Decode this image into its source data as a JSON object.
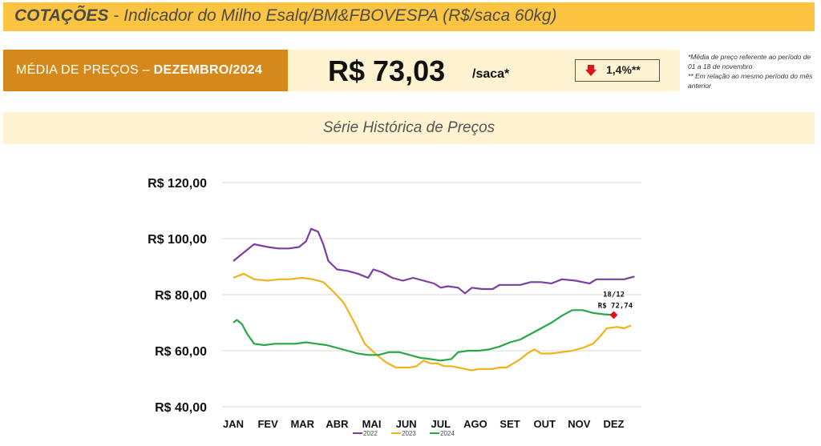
{
  "header": {
    "title_bold": "COTAÇÕES",
    "title_rest": " - Indicador do Milho Esalq/BM&FBOVESPA (R$/saca 60kg)"
  },
  "average": {
    "label_prefix": "MÉDIA DE PREÇOS – ",
    "label_period": "DEZEMBRO/2024",
    "price": "R$ 73,03",
    "unit": "/saca*",
    "change": "1,4%**",
    "change_direction": "down",
    "arrow_color": "#e0121b"
  },
  "notes": {
    "note1": "*Média de preço referente ao período de 01 a 18 de novembro",
    "note2": "** Em relação ao mesmo período do mês anterior"
  },
  "chart_title": "Série Histórica de Preços",
  "chart_data": {
    "type": "line",
    "x_ticks": [
      "JAN",
      "FEV",
      "MAR",
      "ABR",
      "MAI",
      "JUN",
      "JUL",
      "AGO",
      "SET",
      "OUT",
      "NOV",
      "DEZ"
    ],
    "y_ticks": [
      "R$ 120,00",
      "R$ 100,00",
      "R$ 80,00",
      "R$ 60,00",
      "R$ 40,00"
    ],
    "ylim": [
      40,
      120
    ],
    "xlim": [
      0,
      11.8
    ],
    "annotation": {
      "date": "18/12",
      "value": "R$ 72,74",
      "x": 11.0,
      "y": 72.74,
      "color": "#e0121b"
    },
    "series": [
      {
        "name": "2022",
        "color": "#7a3fa0",
        "points": [
          [
            0,
            92
          ],
          [
            0.3,
            95
          ],
          [
            0.6,
            98
          ],
          [
            1,
            97
          ],
          [
            1.3,
            96.5
          ],
          [
            1.6,
            96.5
          ],
          [
            1.9,
            97
          ],
          [
            2.1,
            99
          ],
          [
            2.25,
            103.5
          ],
          [
            2.45,
            102.5
          ],
          [
            2.6,
            98
          ],
          [
            2.75,
            92
          ],
          [
            3,
            89
          ],
          [
            3.3,
            88.5
          ],
          [
            3.6,
            87.5
          ],
          [
            3.9,
            86
          ],
          [
            4.05,
            89
          ],
          [
            4.3,
            88
          ],
          [
            4.6,
            86
          ],
          [
            4.9,
            85
          ],
          [
            5.2,
            86
          ],
          [
            5.5,
            85
          ],
          [
            5.8,
            84
          ],
          [
            6,
            82.5
          ],
          [
            6.2,
            83
          ],
          [
            6.5,
            82.5
          ],
          [
            6.7,
            80.5
          ],
          [
            6.9,
            82.5
          ],
          [
            7.2,
            82
          ],
          [
            7.5,
            82
          ],
          [
            7.7,
            83.5
          ],
          [
            8,
            83.5
          ],
          [
            8.3,
            83.5
          ],
          [
            8.6,
            84.5
          ],
          [
            8.9,
            84.5
          ],
          [
            9.2,
            84
          ],
          [
            9.5,
            85.5
          ],
          [
            9.9,
            85
          ],
          [
            10.1,
            84.5
          ],
          [
            10.3,
            84
          ],
          [
            10.5,
            85.5
          ],
          [
            10.9,
            85.5
          ],
          [
            11.3,
            85.5
          ],
          [
            11.6,
            86.5
          ]
        ]
      },
      {
        "name": "2023",
        "color": "#f2b21c",
        "points": [
          [
            0,
            86
          ],
          [
            0.3,
            87.5
          ],
          [
            0.6,
            85.5
          ],
          [
            1,
            85
          ],
          [
            1.3,
            85.5
          ],
          [
            1.6,
            85.5
          ],
          [
            2,
            86
          ],
          [
            2.3,
            85.5
          ],
          [
            2.6,
            84.5
          ],
          [
            2.9,
            81
          ],
          [
            3.2,
            77
          ],
          [
            3.5,
            70
          ],
          [
            3.8,
            62.5
          ],
          [
            4.1,
            59
          ],
          [
            4.4,
            56
          ],
          [
            4.7,
            54
          ],
          [
            4.9,
            54
          ],
          [
            5.1,
            54
          ],
          [
            5.3,
            54.5
          ],
          [
            5.5,
            56.5
          ],
          [
            5.7,
            55.5
          ],
          [
            5.9,
            55.5
          ],
          [
            6.1,
            54.5
          ],
          [
            6.3,
            54.5
          ],
          [
            6.5,
            54
          ],
          [
            6.7,
            53.5
          ],
          [
            6.9,
            53
          ],
          [
            7.1,
            53.5
          ],
          [
            7.3,
            53.5
          ],
          [
            7.5,
            53.5
          ],
          [
            7.7,
            54
          ],
          [
            7.9,
            54
          ],
          [
            8.1,
            55.5
          ],
          [
            8.3,
            57
          ],
          [
            8.5,
            59
          ],
          [
            8.7,
            60.5
          ],
          [
            8.9,
            59
          ],
          [
            9.2,
            59
          ],
          [
            9.5,
            59.5
          ],
          [
            9.8,
            60
          ],
          [
            10.1,
            61
          ],
          [
            10.4,
            62.5
          ],
          [
            10.6,
            65
          ],
          [
            10.8,
            68
          ],
          [
            11.1,
            68.5
          ],
          [
            11.3,
            68
          ],
          [
            11.5,
            69
          ]
        ]
      },
      {
        "name": "2024",
        "color": "#2aa64a",
        "points": [
          [
            0,
            70
          ],
          [
            0.1,
            71
          ],
          [
            0.25,
            69.5
          ],
          [
            0.4,
            66
          ],
          [
            0.6,
            62.5
          ],
          [
            0.9,
            62
          ],
          [
            1.2,
            62.5
          ],
          [
            1.5,
            62.5
          ],
          [
            1.8,
            62.5
          ],
          [
            2.1,
            63
          ],
          [
            2.4,
            62.5
          ],
          [
            2.7,
            62
          ],
          [
            3,
            61
          ],
          [
            3.3,
            60
          ],
          [
            3.6,
            59
          ],
          [
            3.9,
            58.5
          ],
          [
            4.2,
            58.5
          ],
          [
            4.5,
            59.5
          ],
          [
            4.8,
            59.5
          ],
          [
            5.1,
            58.5
          ],
          [
            5.4,
            57.5
          ],
          [
            5.7,
            57
          ],
          [
            6,
            56.5
          ],
          [
            6.3,
            57
          ],
          [
            6.5,
            59.5
          ],
          [
            6.8,
            60
          ],
          [
            7.1,
            60
          ],
          [
            7.4,
            60.5
          ],
          [
            7.7,
            61.5
          ],
          [
            8,
            63
          ],
          [
            8.3,
            64
          ],
          [
            8.6,
            66
          ],
          [
            8.9,
            68
          ],
          [
            9.2,
            70
          ],
          [
            9.5,
            72.5
          ],
          [
            9.8,
            74.5
          ],
          [
            10.1,
            74.5
          ],
          [
            10.4,
            73.5
          ],
          [
            10.7,
            73
          ],
          [
            11,
            72.74
          ]
        ]
      }
    ]
  }
}
